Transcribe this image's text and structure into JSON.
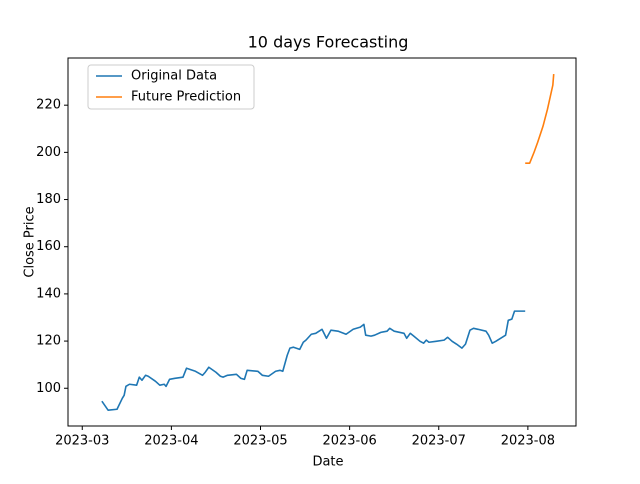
{
  "chart_data": {
    "type": "line",
    "title": "10 days Forecasting",
    "xlabel": "Date",
    "ylabel": "Close Price",
    "xlim": [
      2.84,
      8.54
    ],
    "ylim": [
      84,
      240
    ],
    "xticks": [
      {
        "value": 3,
        "label": "2023-03"
      },
      {
        "value": 4,
        "label": "2023-04"
      },
      {
        "value": 5,
        "label": "2023-05"
      },
      {
        "value": 6,
        "label": "2023-06"
      },
      {
        "value": 7,
        "label": "2023-07"
      },
      {
        "value": 8,
        "label": "2023-08"
      }
    ],
    "yticks": [
      100,
      120,
      140,
      160,
      180,
      200,
      220
    ],
    "legend": "upper left",
    "grid": false,
    "series": [
      {
        "name": "Original Data",
        "color": "#1f77b4",
        "x": [
          3.22,
          3.29,
          3.39,
          3.45,
          3.47,
          3.49,
          3.53,
          3.61,
          3.64,
          3.67,
          3.71,
          3.74,
          3.82,
          3.87,
          3.92,
          3.94,
          3.98,
          4.04,
          4.13,
          4.17,
          4.27,
          4.35,
          4.38,
          4.42,
          4.5,
          4.55,
          4.58,
          4.63,
          4.73,
          4.78,
          4.82,
          4.85,
          4.97,
          5.02,
          5.09,
          5.17,
          5.22,
          5.25,
          5.3,
          5.33,
          5.37,
          5.44,
          5.48,
          5.51,
          5.57,
          5.62,
          5.69,
          5.74,
          5.79,
          5.87,
          5.96,
          6.04,
          6.12,
          6.16,
          6.18,
          6.24,
          6.28,
          6.35,
          6.42,
          6.45,
          6.5,
          6.61,
          6.64,
          6.68,
          6.72,
          6.79,
          6.83,
          6.86,
          6.89,
          6.97,
          7.06,
          7.1,
          7.15,
          7.2,
          7.26,
          7.3,
          7.35,
          7.39,
          7.44,
          7.53,
          7.56,
          7.6,
          7.64,
          7.75,
          7.78,
          7.82,
          7.85,
          7.97
        ],
        "values": [
          94.5,
          90.7,
          91.1,
          95.8,
          97,
          100.8,
          101.7,
          101.3,
          104.7,
          103.4,
          105.5,
          105.1,
          103,
          101.3,
          101.7,
          100.8,
          103.8,
          104.2,
          104.7,
          108.5,
          107.2,
          105.5,
          106.8,
          108.9,
          106.8,
          105.1,
          104.7,
          105.5,
          105.9,
          104.2,
          103.8,
          107.6,
          107.2,
          105.5,
          105.1,
          107.2,
          107.6,
          107.2,
          114,
          117,
          117.4,
          116.5,
          119.5,
          120.4,
          122.9,
          123.3,
          125,
          121.2,
          124.6,
          124.2,
          122.9,
          125,
          125.9,
          127.1,
          122.5,
          122.1,
          122.5,
          123.7,
          124.2,
          125.4,
          124.2,
          123.3,
          121.2,
          123.3,
          122.1,
          119.9,
          119.1,
          120.4,
          119.5,
          119.9,
          120.4,
          121.6,
          119.9,
          118.7,
          117,
          118.7,
          124.6,
          125.4,
          125,
          124.2,
          122.5,
          119.1,
          119.9,
          122.5,
          128.8,
          129.3,
          132.7,
          132.7
        ]
      },
      {
        "name": "Future Prediction",
        "color": "#ff7f0e",
        "x": [
          7.97,
          8.02,
          8.07,
          8.11,
          8.17,
          8.22,
          8.28,
          8.29
        ],
        "values": [
          195.4,
          195.4,
          200.1,
          204.3,
          211.1,
          218.3,
          228.5,
          233.2
        ]
      }
    ]
  }
}
